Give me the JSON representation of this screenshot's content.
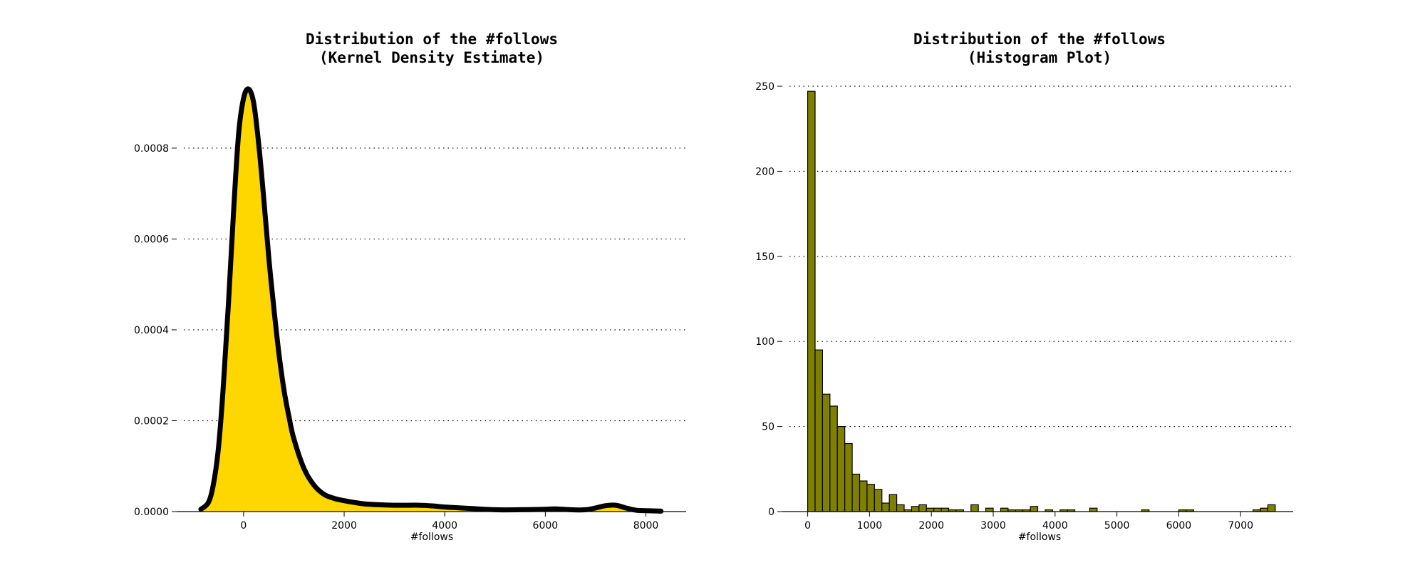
{
  "chart_data": [
    {
      "type": "area",
      "title_lines": [
        "Distribution of the #follows",
        "(Kernel Density Estimate)"
      ],
      "xlabel": "#follows",
      "ylabel": "",
      "xlim": [
        -1330,
        8800
      ],
      "ylim": [
        0,
        0.00093
      ],
      "xticks": [
        0,
        2000,
        4000,
        6000,
        8000
      ],
      "yticks": [
        0.0,
        0.0002,
        0.0004,
        0.0006,
        0.0008
      ],
      "xtick_labels": [
        "0",
        "2000",
        "4000",
        "6000",
        "8000"
      ],
      "ytick_labels": [
        "0.0000",
        "0.0002",
        "0.0004",
        "0.0006",
        "0.0008"
      ],
      "grid": "horizontal dotted",
      "fill_color": "#FFD700",
      "line_color": "#000000",
      "x": [
        -850,
        -700,
        -600,
        -500,
        -400,
        -300,
        -200,
        -100,
        0,
        100,
        200,
        300,
        400,
        500,
        600,
        700,
        800,
        900,
        1000,
        1200,
        1400,
        1600,
        1800,
        2000,
        2200,
        2500,
        3000,
        3500,
        3800,
        4000,
        4500,
        5000,
        5500,
        6000,
        6200,
        6500,
        6800,
        7000,
        7200,
        7400,
        7600,
        7800,
        8000,
        8300
      ],
      "y": [
        5e-06,
        2e-05,
        6e-05,
        0.00014,
        0.00028,
        0.00046,
        0.00066,
        0.00083,
        0.00091,
        0.00093,
        0.0009,
        0.00081,
        0.00069,
        0.00056,
        0.00045,
        0.00035,
        0.00027,
        0.00021,
        0.00016,
        9.5e-05,
        5.8e-05,
        3.8e-05,
        2.9e-05,
        2.4e-05,
        2e-05,
        1.6e-05,
        1.4e-05,
        1.4e-05,
        1.2e-05,
        1e-05,
        7e-06,
        4e-06,
        4e-06,
        5e-06,
        6e-06,
        4e-06,
        4e-06,
        8e-06,
        1.3e-05,
        1.4e-05,
        8e-06,
        3e-06,
        2e-06,
        1e-06
      ]
    },
    {
      "type": "bar",
      "title_lines": [
        "Distribution of the #follows",
        "(Histogram Plot)"
      ],
      "xlabel": "#follows",
      "ylabel": "",
      "xlim": [
        -410,
        7850
      ],
      "ylim": [
        0,
        250
      ],
      "xticks": [
        0,
        1000,
        2000,
        3000,
        4000,
        5000,
        6000,
        7000
      ],
      "yticks": [
        0,
        50,
        100,
        150,
        200,
        250
      ],
      "xtick_labels": [
        "0",
        "1000",
        "2000",
        "3000",
        "4000",
        "5000",
        "6000",
        "7000"
      ],
      "ytick_labels": [
        "0",
        "50",
        "100",
        "150",
        "200",
        "250"
      ],
      "grid": "horizontal dotted",
      "bar_color": "#808000",
      "edge_color": "#000000",
      "bin_start": 0,
      "bin_width": 120,
      "counts": [
        247,
        95,
        69,
        62,
        50,
        40,
        22,
        18,
        16,
        13,
        5,
        10,
        4,
        1,
        3,
        4,
        2,
        2,
        2,
        1,
        1,
        0,
        4,
        0,
        2,
        0,
        2,
        1,
        1,
        1,
        3,
        0,
        1,
        0,
        1,
        1,
        0,
        0,
        2,
        0,
        0,
        0,
        0,
        0,
        0,
        1,
        0,
        0,
        0,
        0,
        1,
        1,
        0,
        0,
        0,
        0,
        0,
        0,
        0,
        0,
        1,
        2,
        4
      ]
    }
  ]
}
